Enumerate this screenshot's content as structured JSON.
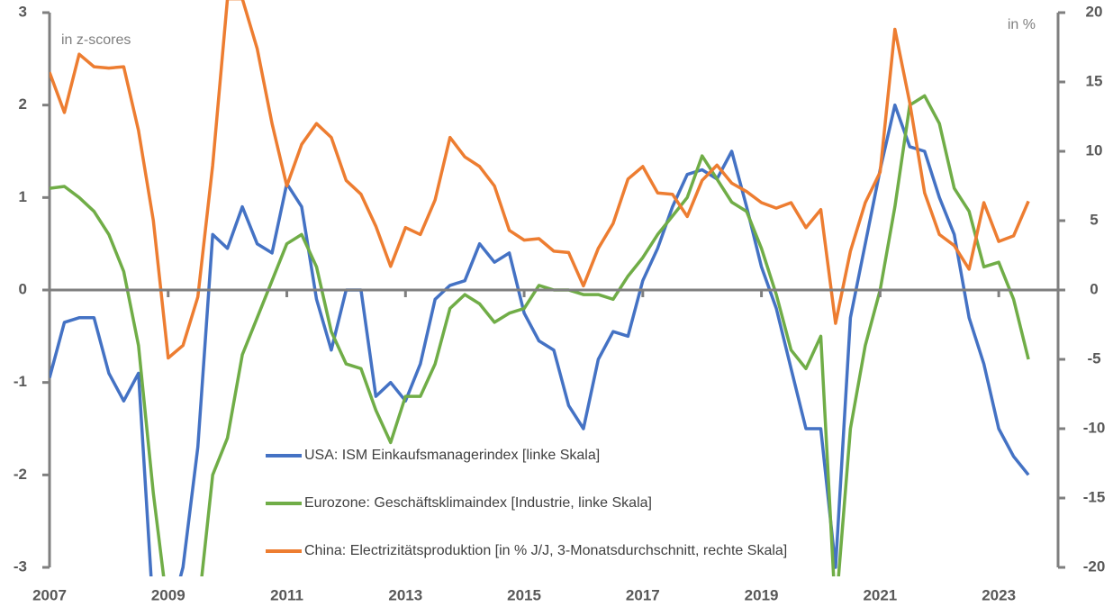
{
  "chart_data": {
    "type": "line",
    "ylabel": "in z-scores",
    "y2label": "in %",
    "x": [
      2007,
      2007.25,
      2007.5,
      2007.75,
      2008,
      2008.25,
      2008.5,
      2008.75,
      2009,
      2009.25,
      2009.5,
      2009.75,
      2010,
      2010.25,
      2010.5,
      2010.75,
      2011,
      2011.25,
      2011.5,
      2011.75,
      2012,
      2012.25,
      2012.5,
      2012.75,
      2013,
      2013.25,
      2013.5,
      2013.75,
      2014,
      2014.25,
      2014.5,
      2014.75,
      2015,
      2015.25,
      2015.5,
      2015.75,
      2016,
      2016.25,
      2016.5,
      2016.75,
      2017,
      2017.25,
      2017.5,
      2017.75,
      2018,
      2018.25,
      2018.5,
      2018.75,
      2019,
      2019.25,
      2019.5,
      2019.75,
      2020,
      2020.25,
      2020.5,
      2020.75,
      2021,
      2021.25,
      2021.5,
      2021.75,
      2022,
      2022.25,
      2022.5,
      2022.75,
      2023,
      2023.25,
      2023.5
    ],
    "series": [
      {
        "name": "USA: ISM Einkaufsmanagerindex [linke Skala]",
        "color": "#4472c4",
        "axis": "y",
        "values": [
          -0.95,
          -0.35,
          -0.3,
          -0.3,
          -0.9,
          -1.2,
          -0.9,
          -3.5,
          -3.6,
          -3.0,
          -1.7,
          0.6,
          0.45,
          0.9,
          0.5,
          0.4,
          1.15,
          0.9,
          -0.1,
          -0.65,
          0.0,
          0.0,
          -1.15,
          -1.0,
          -1.2,
          -0.8,
          -0.1,
          0.05,
          0.1,
          0.5,
          0.3,
          0.4,
          -0.25,
          -0.55,
          -0.65,
          -1.25,
          -1.5,
          -0.75,
          -0.45,
          -0.5,
          0.1,
          0.45,
          0.9,
          1.25,
          1.3,
          1.2,
          1.5,
          0.9,
          0.25,
          -0.2,
          -0.85,
          -1.5,
          -1.5,
          -3.0,
          -0.3,
          0.5,
          1.3,
          2.0,
          1.55,
          1.5,
          1.0,
          0.6,
          -0.3,
          -0.8,
          -1.5,
          -1.8,
          -2.0
        ]
      },
      {
        "name": "Eurozone: Geschäftsklimaindex [Industrie, linke Skala]",
        "color": "#70ad47",
        "axis": "y",
        "values": [
          1.1,
          1.12,
          1.0,
          0.85,
          0.6,
          0.2,
          -0.6,
          -2.2,
          -3.5,
          -3.5,
          -3.5,
          -2.0,
          -1.6,
          -0.7,
          -0.3,
          0.1,
          0.5,
          0.6,
          0.25,
          -0.45,
          -0.8,
          -0.85,
          -1.3,
          -1.65,
          -1.15,
          -1.15,
          -0.8,
          -0.2,
          -0.05,
          -0.15,
          -0.35,
          -0.25,
          -0.2,
          0.05,
          0.0,
          0.0,
          -0.05,
          -0.05,
          -0.1,
          0.15,
          0.35,
          0.6,
          0.8,
          1.0,
          1.45,
          1.2,
          0.95,
          0.85,
          0.45,
          -0.05,
          -0.65,
          -0.85,
          -0.5,
          -3.5,
          -1.5,
          -0.6,
          0.0,
          0.9,
          2.0,
          2.1,
          1.8,
          1.1,
          0.85,
          0.25,
          0.3,
          -0.1,
          -0.75
        ]
      },
      {
        "name": "China: Electrizitätsproduktion [in % J/J, 3-Monatsdurchschnitt, rechte Skala]",
        "color": "#ed7d31",
        "axis": "y2",
        "values": [
          15.7,
          12.8,
          17.0,
          16.1,
          16.0,
          16.1,
          11.5,
          5.0,
          -4.9,
          -4.0,
          -0.5,
          9.0,
          21.0,
          21.0,
          17.4,
          12.0,
          7.5,
          10.5,
          12.0,
          11.0,
          7.9,
          6.9,
          4.6,
          1.7,
          4.5,
          4.0,
          6.5,
          11.0,
          9.6,
          8.9,
          7.5,
          4.3,
          3.6,
          3.7,
          2.8,
          2.7,
          0.3,
          3.0,
          4.8,
          8.0,
          8.9,
          7.0,
          6.9,
          5.3,
          7.9,
          9.0,
          7.7,
          7.1,
          6.3,
          5.9,
          6.3,
          4.5,
          5.8,
          -2.4,
          2.8,
          6.3,
          8.5,
          18.8,
          13.5,
          7.0,
          4.0,
          3.2,
          1.5,
          6.3,
          3.5,
          3.9,
          6.4
        ]
      }
    ],
    "xlim": [
      2007,
      2024
    ],
    "xticks": [
      2007,
      2009,
      2011,
      2013,
      2015,
      2017,
      2019,
      2021,
      2023
    ],
    "ylim": [
      -3,
      3
    ],
    "yticks": [
      -3,
      -2,
      -1,
      0,
      1,
      2,
      3
    ],
    "y2lim": [
      -20,
      20
    ],
    "y2ticks": [
      -20,
      -15,
      -10,
      -5,
      0,
      5,
      10,
      15,
      20
    ]
  }
}
